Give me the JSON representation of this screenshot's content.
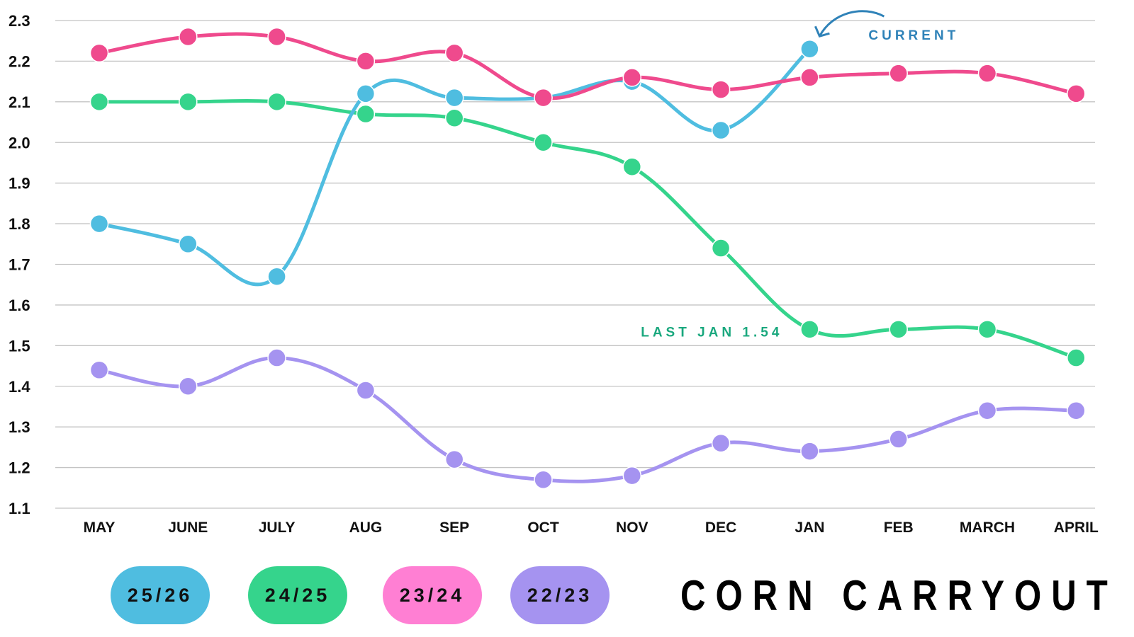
{
  "chart_data": {
    "type": "line",
    "title": "CORN CARRYOUT",
    "xlabel": "",
    "ylabel": "",
    "ylim": [
      1.1,
      2.3
    ],
    "yticks": [
      "1.1",
      "1.2",
      "1.3",
      "1.4",
      "1.5",
      "1.6",
      "1.7",
      "1.8",
      "1.9",
      "2.0",
      "2.1",
      "2.2",
      "2.3"
    ],
    "categories": [
      "MAY",
      "JUNE",
      "JULY",
      "AUG",
      "SEP",
      "OCT",
      "NOV",
      "DEC",
      "JAN",
      "FEB",
      "MARCH",
      "APRIL"
    ],
    "grid": "horizontal",
    "legend_position": "bottom-left",
    "series": [
      {
        "name": "25/26",
        "color": "#4fbde0",
        "values": [
          1.8,
          1.75,
          1.67,
          2.12,
          2.11,
          2.11,
          2.15,
          2.03,
          2.23,
          null,
          null,
          null
        ]
      },
      {
        "name": "24/25",
        "color": "#35d48c",
        "values": [
          2.1,
          2.1,
          2.1,
          2.07,
          2.06,
          2.0,
          1.94,
          1.74,
          1.54,
          1.54,
          1.54,
          1.47
        ]
      },
      {
        "name": "23/24",
        "color": "#ef4a8d",
        "legend_color": "#ff7fd3",
        "values": [
          2.22,
          2.26,
          2.26,
          2.2,
          2.22,
          2.11,
          2.16,
          2.13,
          2.16,
          2.17,
          2.17,
          2.12
        ]
      },
      {
        "name": "22/23",
        "color": "#a593f0",
        "values": [
          1.44,
          1.4,
          1.47,
          1.39,
          1.22,
          1.17,
          1.18,
          1.26,
          1.24,
          1.27,
          1.34,
          1.34
        ]
      }
    ],
    "annotations": [
      {
        "text": "CURRENT",
        "color": "#2f82b8",
        "series": "25/26",
        "category": "JAN"
      },
      {
        "text": "LAST JAN 1.54",
        "color": "#1aa87e",
        "series": "24/25",
        "category": "JAN"
      }
    ]
  }
}
